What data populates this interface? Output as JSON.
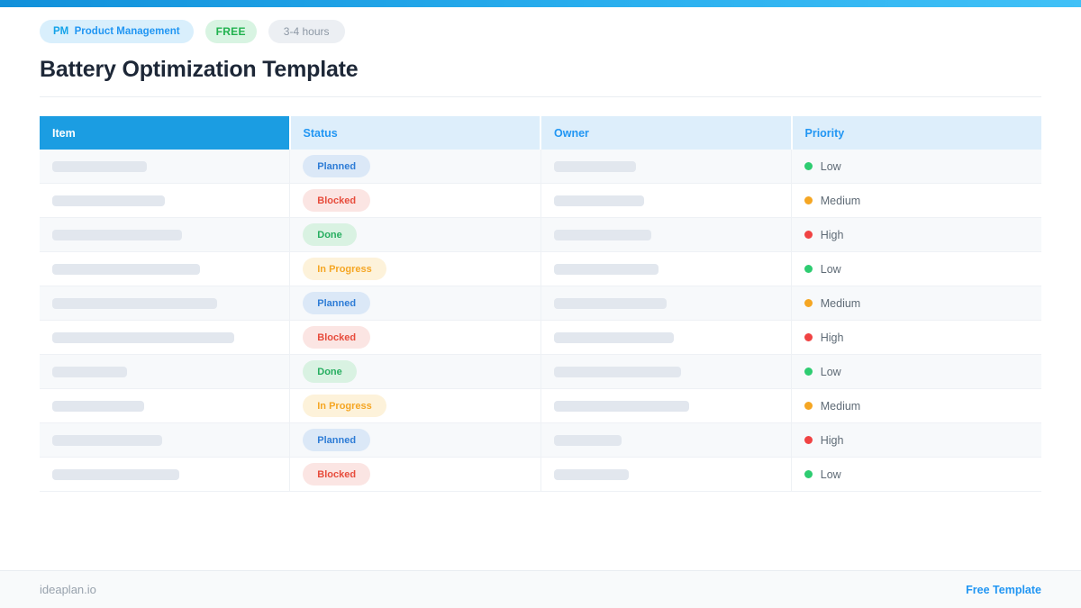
{
  "page": {
    "title": "Battery Optimization Template"
  },
  "header": {
    "category_badge": {
      "prefix": "PM",
      "label": "Product Management",
      "prefix_color": "#14a3e9",
      "text_color": "#2196f3",
      "bg_color": "#d9effc"
    },
    "free_badge": {
      "label": "FREE",
      "text_color": "#21b24e",
      "bg_color": "#d8f4e2"
    },
    "duration_badge": {
      "label": "3-4 hours",
      "text_color": "#8d98a5",
      "bg_color": "#eceff3"
    }
  },
  "table": {
    "columns": [
      "Item",
      "Status",
      "Owner",
      "Priority"
    ],
    "header_colors": {
      "first_bg": "#1b9de2",
      "first_text": "#ffffff",
      "rest_bg": "#ddeefb",
      "rest_text": "#2196f3"
    },
    "status_styles": {
      "Planned": {
        "text": "#2e7cd6",
        "bg": "#dbe8f7"
      },
      "Blocked": {
        "text": "#e74c3c",
        "bg": "#fbe5e3"
      },
      "Done": {
        "text": "#27ae60",
        "bg": "#d9f2e2"
      },
      "In Progress": {
        "text": "#f5a623",
        "bg": "#fdf2da"
      }
    },
    "priority_colors": {
      "Low": "#2ecc71",
      "Medium": "#f5a623",
      "High": "#f04343"
    },
    "rows": [
      {
        "item_w": 105,
        "status": "Planned",
        "owner_w": 91,
        "priority": "Low"
      },
      {
        "item_w": 125,
        "status": "Blocked",
        "owner_w": 100,
        "priority": "Medium"
      },
      {
        "item_w": 144,
        "status": "Done",
        "owner_w": 108,
        "priority": "High"
      },
      {
        "item_w": 164,
        "status": "In Progress",
        "owner_w": 116,
        "priority": "Low"
      },
      {
        "item_w": 183,
        "status": "Planned",
        "owner_w": 125,
        "priority": "Medium"
      },
      {
        "item_w": 202,
        "status": "Blocked",
        "owner_w": 133,
        "priority": "High"
      },
      {
        "item_w": 83,
        "status": "Done",
        "owner_w": 141,
        "priority": "Low"
      },
      {
        "item_w": 102,
        "status": "In Progress",
        "owner_w": 150,
        "priority": "Medium"
      },
      {
        "item_w": 122,
        "status": "Planned",
        "owner_w": 75,
        "priority": "High"
      },
      {
        "item_w": 141,
        "status": "Blocked",
        "owner_w": 83,
        "priority": "Low"
      }
    ]
  },
  "footer": {
    "site": "ideaplan.io",
    "link": "Free Template"
  }
}
